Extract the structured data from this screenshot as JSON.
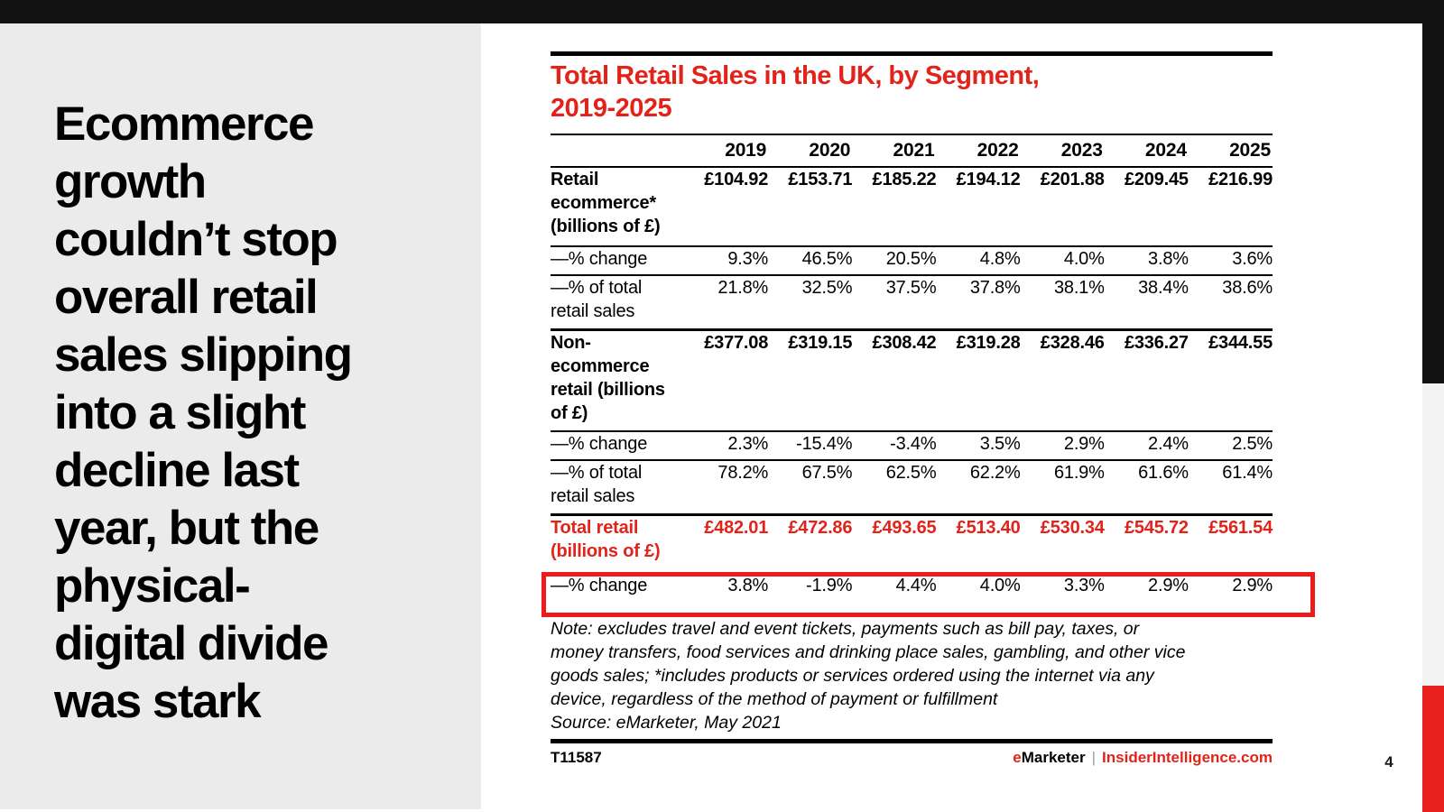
{
  "colors": {
    "brand_red": "#e2231a",
    "bar_black": "#121212",
    "panel_gray": "#ebebeb",
    "strip_gray": "#f3f3f3",
    "highlight_red": "#ee1b1b"
  },
  "headline": "Ecommerce\ngrowth\ncouldn’t stop\noverall retail\nsales slipping\ninto a slight\ndecline last\nyear, but the\nphysical-\ndigital divide\nwas stark",
  "chart_data": {
    "type": "table",
    "title": "Total Retail Sales in the UK, by Segment, 2019-2025",
    "title_display": "Total Retail Sales in the UK, by Segment,\n2019-2025",
    "columns": [
      "2019",
      "2020",
      "2021",
      "2022",
      "2023",
      "2024",
      "2025"
    ],
    "rows": [
      {
        "label": "Retail\necommerce*\n(billions of £)",
        "style": "bold",
        "values": [
          "£104.92",
          "£153.71",
          "£185.22",
          "£194.12",
          "£201.88",
          "£209.45",
          "£216.99"
        ]
      },
      {
        "label": "—% change",
        "style": "regular",
        "values": [
          "9.3%",
          "46.5%",
          "20.5%",
          "4.8%",
          "4.0%",
          "3.8%",
          "3.6%"
        ]
      },
      {
        "label": "—% of total\nretail sales",
        "style": "regular",
        "section_end": true,
        "values": [
          "21.8%",
          "32.5%",
          "37.5%",
          "37.8%",
          "38.1%",
          "38.4%",
          "38.6%"
        ]
      },
      {
        "label": "Non-\necommerce\nretail (billions\nof £)",
        "style": "bold",
        "values": [
          "£377.08",
          "£319.15",
          "£308.42",
          "£319.28",
          "£328.46",
          "£336.27",
          "£344.55"
        ]
      },
      {
        "label": "—% change",
        "style": "regular",
        "values": [
          "2.3%",
          "-15.4%",
          "-3.4%",
          "3.5%",
          "2.9%",
          "2.4%",
          "2.5%"
        ]
      },
      {
        "label": "—% of total\nretail sales",
        "style": "regular",
        "section_end": true,
        "values": [
          "78.2%",
          "67.5%",
          "62.5%",
          "62.2%",
          "61.9%",
          "61.6%",
          "61.4%"
        ]
      },
      {
        "label": "Total retail\n(billions of £)",
        "style": "red-bold",
        "values": [
          "£482.01",
          "£472.86",
          "£493.65",
          "£513.40",
          "£530.34",
          "£545.72",
          "£561.54"
        ]
      },
      {
        "label": "—% change",
        "style": "regular",
        "highlighted": true,
        "values": [
          "3.8%",
          "-1.9%",
          "4.4%",
          "4.0%",
          "3.3%",
          "2.9%",
          "2.9%"
        ]
      }
    ],
    "note": "Note: excludes travel and event tickets, payments such as bill pay, taxes, or\nmoney transfers, food services and drinking place sales, gambling, and other vice\ngoods sales; *includes products or services ordered using the internet via any\ndevice, regardless of the method of payment or fulfillment",
    "source": "Source: eMarketer, May 2021"
  },
  "footer": {
    "chart_id": "T11587",
    "brand_prefix": "e",
    "brand_name": "Marketer",
    "separator": "|",
    "site": "InsiderIntelligence.com"
  },
  "page": {
    "number": "4"
  }
}
